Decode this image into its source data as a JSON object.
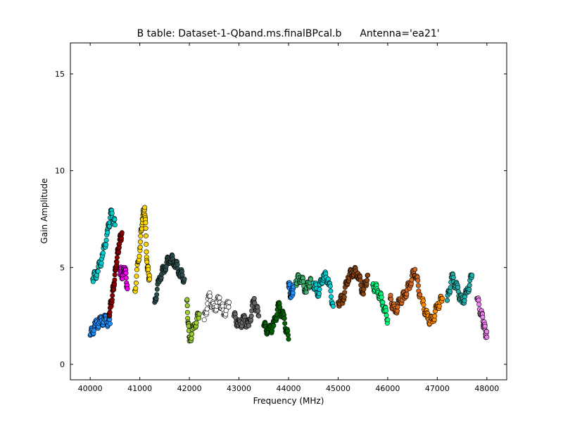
{
  "chart_data": {
    "type": "scatter",
    "title_left": "B table: Dataset-1-Qband.ms.finalBPcal.b",
    "title_right": "Antenna='ea21'",
    "xlabel": "Frequency (MHz)",
    "ylabel": "Gain Amplitude",
    "xlim": [
      39600,
      48400
    ],
    "ylim": [
      -0.8,
      16.6
    ],
    "xticks": [
      40000,
      41000,
      42000,
      43000,
      44000,
      45000,
      46000,
      47000,
      48000
    ],
    "yticks": [
      0,
      5,
      10,
      15
    ],
    "grid": false,
    "legend": "none",
    "colors": [
      "#1e90ff",
      "#00ced1",
      "#ff00ff",
      "#ffd700",
      "#8b0000",
      "#ff8c00",
      "#006400",
      "#2f4f4f",
      "#ffffff",
      "#d2691e",
      "#ff69b4",
      "#9acd32",
      "#00bfff",
      "#9400d3",
      "#dc143c",
      "#00ff7f",
      "#20b2aa",
      "#8b4513",
      "#ee82ee",
      "#696969",
      "#0000cd",
      "#3cb371",
      "#daa520",
      "#000000"
    ],
    "series": [
      {
        "color_index": 0,
        "x": [
          40000,
          40100,
          40200,
          40300,
          40400
        ],
        "y": [
          1.5,
          2.0,
          2.2,
          2.3,
          2.1
        ]
      },
      {
        "color_index": 1,
        "x": [
          40050,
          40150,
          40250,
          40350,
          40420,
          40500
        ],
        "y": [
          4.4,
          4.8,
          5.6,
          6.8,
          7.8,
          7.2
        ]
      },
      {
        "color_index": 2,
        "x": [
          40600,
          40650,
          40700,
          40750
        ],
        "y": [
          4.9,
          4.6,
          5.0,
          3.9
        ]
      },
      {
        "color_index": 3,
        "x": [
          40900,
          41000,
          41050,
          41100,
          41150,
          41200
        ],
        "y": [
          3.8,
          6.0,
          7.5,
          8.1,
          5.0,
          4.4
        ]
      },
      {
        "color_index": 4,
        "x": [
          40380,
          40430,
          40480,
          40530,
          40580,
          40640
        ],
        "y": [
          2.6,
          3.3,
          4.2,
          5.3,
          6.2,
          6.8
        ]
      },
      {
        "color_index": 7,
        "x": [
          41300,
          41400,
          41500,
          41600,
          41700,
          41800,
          41900
        ],
        "y": [
          3.2,
          4.5,
          5.0,
          5.5,
          5.3,
          4.8,
          4.4
        ]
      },
      {
        "color_index": 11,
        "x": [
          41950,
          42000,
          42100,
          42200
        ],
        "y": [
          3.3,
          1.2,
          2.0,
          2.6
        ]
      },
      {
        "color_index": 8,
        "x": [
          42300,
          42400,
          42500,
          42600,
          42700,
          42800
        ],
        "y": [
          2.3,
          3.5,
          2.8,
          3.4,
          2.6,
          3.2
        ]
      },
      {
        "color_index": 19,
        "x": [
          42900,
          43000,
          43100,
          43200,
          43300,
          43400
        ],
        "y": [
          2.5,
          2.0,
          2.3,
          2.0,
          3.3,
          2.5
        ]
      },
      {
        "color_index": 6,
        "x": [
          43500,
          43600,
          43700,
          43800,
          43900,
          44000
        ],
        "y": [
          2.0,
          1.7,
          2.0,
          3.0,
          2.4,
          1.3
        ]
      },
      {
        "color_index": 0,
        "x": [
          44000,
          44050,
          44100
        ],
        "y": [
          4.2,
          3.5,
          4.0
        ]
      },
      {
        "color_index": 21,
        "x": [
          44150,
          44250,
          44350,
          44450
        ],
        "y": [
          4.3,
          4.5,
          3.8,
          4.4
        ]
      },
      {
        "color_index": 1,
        "x": [
          44500,
          44600,
          44700,
          44800,
          44900
        ],
        "y": [
          4.2,
          3.7,
          4.6,
          4.4,
          3.0
        ]
      },
      {
        "color_index": 17,
        "x": [
          45000,
          45100,
          45200,
          45300,
          45400,
          45500,
          45600
        ],
        "y": [
          3.2,
          3.4,
          4.5,
          4.8,
          4.7,
          3.7,
          4.6
        ]
      },
      {
        "color_index": 15,
        "x": [
          45700,
          45800,
          45900,
          46000
        ],
        "y": [
          4.1,
          3.8,
          3.2,
          2.3
        ]
      },
      {
        "color_index": 9,
        "x": [
          46050,
          46150,
          46250,
          46350,
          46450,
          46550,
          46650
        ],
        "y": [
          3.4,
          2.7,
          3.3,
          3.6,
          4.2,
          4.9,
          3.6
        ]
      },
      {
        "color_index": 5,
        "x": [
          46700,
          46800,
          46900,
          47000,
          47100
        ],
        "y": [
          3.2,
          2.4,
          2.2,
          3.0,
          3.4
        ]
      },
      {
        "color_index": 16,
        "x": [
          47200,
          47300,
          47400,
          47500,
          47600,
          47700
        ],
        "y": [
          3.3,
          4.5,
          3.9,
          3.2,
          3.7,
          4.6
        ]
      },
      {
        "color_index": 18,
        "x": [
          47800,
          47900,
          47950,
          48000
        ],
        "y": [
          3.4,
          2.5,
          1.9,
          1.4
        ]
      }
    ]
  }
}
